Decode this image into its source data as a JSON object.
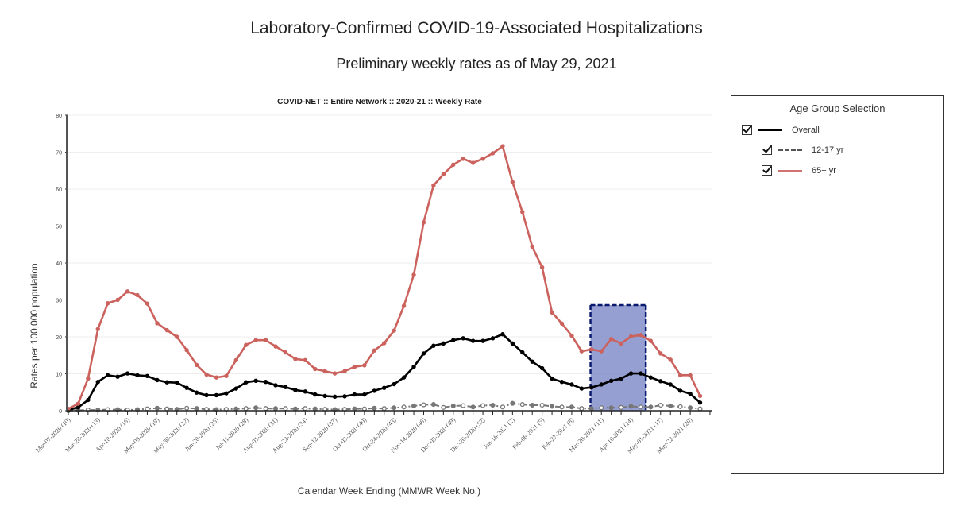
{
  "title": "Laboratory-Confirmed COVID-19-Associated Hospitalizations",
  "subtitle": "Preliminary weekly rates as of May 29, 2021",
  "legend": {
    "title": "Age Group Selection",
    "items": [
      {
        "label": "Overall",
        "checked": true,
        "color": "#000000",
        "style": "solid"
      },
      {
        "label": "12-17 yr",
        "checked": true,
        "color": "#555555",
        "style": "dash-dot"
      },
      {
        "label": "65+ yr",
        "checked": true,
        "color": "#c85f5a",
        "style": "solid"
      }
    ]
  },
  "chart_data": {
    "type": "line",
    "title": "COVID-NET :: Entire Network :: 2020-21 :: Weekly Rate",
    "xlabel": "Calendar Week Ending (MMWR Week No.)",
    "ylabel": "Rates per 100,000 population",
    "ylim": [
      0,
      80
    ],
    "yticks": [
      "0",
      "10",
      "20",
      "30",
      "40",
      "50",
      "60",
      "70",
      "80"
    ],
    "grid": true,
    "legend_position": "right",
    "highlight_color": "#7b87c6",
    "x_tick_labels": [
      "Mar-07-2020 (10)",
      "Mar-28-2020 (13)",
      "Apr-18-2020 (16)",
      "May-09-2020 (19)",
      "May-30-2020 (22)",
      "Jun-20-2020 (25)",
      "Jul-11-2020 (28)",
      "Aug-01-2020 (31)",
      "Aug-22-2020 (34)",
      "Sep-12-2020 (37)",
      "Oct-03-2020 (40)",
      "Oct-24-2020 (43)",
      "Nov-14-2020 (46)",
      "Dec-05-2020 (49)",
      "Dec-26-2020 (52)",
      "Jan-16-2021 (2)",
      "Feb-06-2021 (5)",
      "Feb-27-2021 (8)",
      "Mar-20-2021 (11)",
      "Apr-10-2021 (14)",
      "May-01-2021 (17)",
      "May-22-2021 (20)"
    ],
    "series": [
      {
        "name": "Overall",
        "color": "#000000",
        "values": [
          0.2,
          0.9,
          2.9,
          7.8,
          9.6,
          9.2,
          10.1,
          9.6,
          9.4,
          8.3,
          7.7,
          7.6,
          6.2,
          4.9,
          4.2,
          4.2,
          4.7,
          6.0,
          7.7,
          8.1,
          7.8,
          6.9,
          6.4,
          5.6,
          5.2,
          4.4,
          4.0,
          3.8,
          3.9,
          4.4,
          4.4,
          5.4,
          6.2,
          7.2,
          9.0,
          11.9,
          15.5,
          17.6,
          18.2,
          19.1,
          19.6,
          18.9,
          18.9,
          19.6,
          20.7,
          18.2,
          15.8,
          13.3,
          11.5,
          8.7,
          7.8,
          7.1,
          6.0,
          6.3,
          7.1,
          8.1,
          8.7,
          10.1,
          10.1,
          9.0,
          8.0,
          7.1,
          5.4,
          4.6,
          2.2
        ]
      },
      {
        "name": "12-17 yr",
        "color": "#666666",
        "values": [
          0.0,
          0.1,
          0.2,
          0.2,
          0.3,
          0.3,
          0.2,
          0.3,
          0.5,
          0.7,
          0.5,
          0.4,
          0.7,
          0.6,
          0.4,
          0.3,
          0.4,
          0.5,
          0.6,
          0.8,
          0.6,
          0.6,
          0.6,
          0.5,
          0.6,
          0.5,
          0.4,
          0.3,
          0.4,
          0.5,
          0.5,
          0.7,
          0.6,
          0.8,
          1.0,
          1.3,
          1.6,
          1.7,
          0.9,
          1.3,
          1.4,
          1.0,
          1.4,
          1.5,
          1.0,
          2.0,
          1.7,
          1.5,
          1.5,
          1.2,
          1.0,
          1.0,
          0.6,
          0.6,
          0.8,
          0.8,
          0.9,
          1.2,
          1.0,
          1.0,
          1.5,
          1.3,
          1.1,
          0.8,
          0.5
        ]
      },
      {
        "name": "65+ yr",
        "color": "#c85f5a",
        "values": [
          0.5,
          1.9,
          8.7,
          22.1,
          29.1,
          30.0,
          32.3,
          31.3,
          29.0,
          23.7,
          21.8,
          20.0,
          16.4,
          12.4,
          9.8,
          9.0,
          9.4,
          13.7,
          17.8,
          19.1,
          19.1,
          17.4,
          15.8,
          14.0,
          13.7,
          11.3,
          10.7,
          10.1,
          10.7,
          11.9,
          12.3,
          16.3,
          18.3,
          21.7,
          28.4,
          36.8,
          51.0,
          61.0,
          64.0,
          66.6,
          68.2,
          67.1,
          68.2,
          69.7,
          71.6,
          61.9,
          53.8,
          44.4,
          38.8,
          26.6,
          23.6,
          20.3,
          16.1,
          16.6,
          16.1,
          19.4,
          18.2,
          20.1,
          20.5,
          18.9,
          15.5,
          13.8,
          9.6,
          9.6,
          4.0
        ]
      }
    ]
  }
}
